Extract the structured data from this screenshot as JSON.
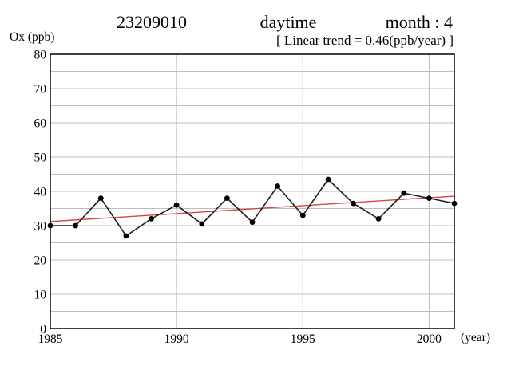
{
  "header": {
    "station_id": "23209010",
    "period_label": "daytime",
    "month_label": "month : 4",
    "trend_label": "[ Linear trend = 0.46(ppb/year) ]"
  },
  "axes": {
    "y_label": "Ox (ppb)",
    "x_label": "(year)"
  },
  "chart_data": {
    "type": "line",
    "title": "23209010 daytime month : 4",
    "subtitle": "[ Linear trend = 0.46(ppb/year) ]",
    "ylabel": "Ox (ppb)",
    "xlabel": "(year)",
    "x": [
      1985,
      1986,
      1987,
      1988,
      1989,
      1990,
      1991,
      1992,
      1993,
      1994,
      1995,
      1996,
      1997,
      1998,
      1999,
      2000,
      2001
    ],
    "values": [
      30,
      30,
      38,
      27,
      32,
      36,
      30.5,
      38,
      31,
      41.5,
      33,
      43.5,
      36.5,
      32,
      39.5,
      38,
      36.5
    ],
    "xlim": [
      1985,
      2001
    ],
    "ylim": [
      0,
      80
    ],
    "xticks": [
      1985,
      1990,
      1995,
      2000
    ],
    "yticks": [
      0,
      10,
      20,
      30,
      40,
      50,
      60,
      70,
      80
    ],
    "grid_step_y": 5,
    "grid": true,
    "legend": "none",
    "trend": {
      "slope_ppb_per_year": 0.46,
      "start_x": 1985,
      "end_x": 2001,
      "start_value": 31.2,
      "end_value": 38.6
    },
    "colors": {
      "line": "#1c1c1c",
      "marker": "#000000",
      "trend": "#d64545",
      "grid": "#bdbdbd",
      "axis": "#000000"
    }
  }
}
